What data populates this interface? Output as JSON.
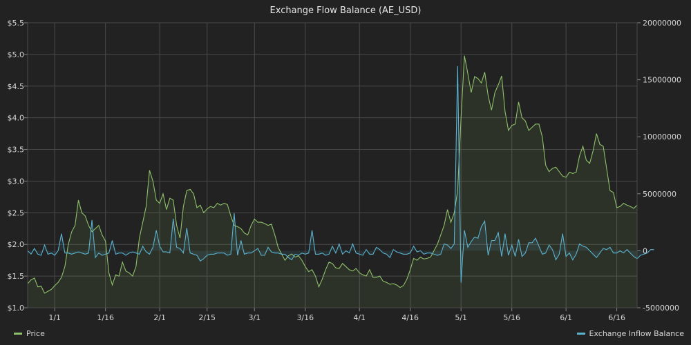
{
  "chart_data": {
    "type": "line",
    "title": "Exchange Flow Balance (AE_USD)",
    "x_ticks": [
      "1/1",
      "1/16",
      "2/1",
      "2/15",
      "3/1",
      "3/16",
      "4/1",
      "4/16",
      "5/1",
      "5/16",
      "6/1",
      "6/16"
    ],
    "y_left": {
      "min": 1.0,
      "max": 5.5,
      "ticks": [
        "$1.0",
        "$1.5",
        "$2.0",
        "$2.5",
        "$3.0",
        "$3.5",
        "$4.0",
        "$4.5",
        "$5.0",
        "$5.5"
      ]
    },
    "y_right": {
      "min": -5000000,
      "max": 20000000,
      "ticks": [
        "-5000000",
        "0",
        "5000000",
        "10000000",
        "15000000",
        "20000000"
      ]
    },
    "grid": true,
    "colors": {
      "price": "#8fc16a",
      "flow": "#5bb3d0",
      "background": "#222222",
      "grid": "#4a4a4a"
    },
    "series": [
      {
        "name": "Price",
        "axis": "left",
        "x_start": "2018-12-24",
        "values": [
          1.38,
          1.44,
          1.47,
          1.33,
          1.34,
          1.23,
          1.26,
          1.29,
          1.35,
          1.4,
          1.48,
          1.65,
          2.0,
          2.2,
          2.3,
          2.7,
          2.5,
          2.45,
          2.3,
          2.2,
          2.25,
          2.3,
          2.15,
          2.05,
          1.55,
          1.36,
          1.52,
          1.5,
          1.72,
          1.58,
          1.55,
          1.5,
          1.65,
          2.1,
          2.35,
          2.6,
          3.17,
          3.0,
          2.7,
          2.65,
          2.8,
          2.55,
          2.73,
          2.7,
          2.3,
          2.1,
          2.6,
          2.85,
          2.87,
          2.8,
          2.58,
          2.62,
          2.5,
          2.56,
          2.6,
          2.58,
          2.65,
          2.62,
          2.65,
          2.63,
          2.45,
          2.3,
          2.28,
          2.25,
          2.18,
          2.15,
          2.3,
          2.4,
          2.35,
          2.35,
          2.33,
          2.3,
          2.32,
          2.15,
          1.95,
          1.85,
          1.75,
          1.82,
          1.85,
          1.8,
          1.82,
          1.75,
          1.65,
          1.57,
          1.6,
          1.5,
          1.33,
          1.45,
          1.6,
          1.72,
          1.7,
          1.63,
          1.62,
          1.7,
          1.65,
          1.6,
          1.58,
          1.62,
          1.55,
          1.52,
          1.5,
          1.6,
          1.48,
          1.48,
          1.5,
          1.42,
          1.4,
          1.37,
          1.38,
          1.36,
          1.32,
          1.35,
          1.45,
          1.6,
          1.78,
          1.75,
          1.8,
          1.77,
          1.78,
          1.8,
          1.9,
          2.0,
          2.15,
          2.3,
          2.55,
          2.35,
          2.5,
          2.85,
          4.0,
          4.98,
          4.7,
          4.4,
          4.65,
          4.62,
          4.55,
          4.72,
          4.35,
          4.12,
          4.4,
          4.52,
          4.66,
          4.1,
          3.8,
          3.88,
          3.9,
          4.25,
          4.0,
          3.95,
          3.8,
          3.85,
          3.9,
          3.9,
          3.7,
          3.25,
          3.15,
          3.2,
          3.22,
          3.15,
          3.08,
          3.06,
          3.14,
          3.12,
          3.14,
          3.4,
          3.55,
          3.33,
          3.28,
          3.48,
          3.75,
          3.58,
          3.55,
          3.2,
          2.85,
          2.82,
          2.58,
          2.6,
          2.65,
          2.62,
          2.6,
          2.57,
          2.62
        ]
      },
      {
        "name": "Exchange Inflow Balance",
        "axis": "right",
        "x_start": "2018-12-24",
        "values": [
          0,
          -300000,
          200000,
          -300000,
          -400000,
          500000,
          -300000,
          -200000,
          -400000,
          0,
          1500000,
          -200000,
          -200000,
          -300000,
          -200000,
          -100000,
          -200000,
          -300000,
          -200000,
          2700000,
          -600000,
          -200000,
          -400000,
          -300000,
          -200000,
          900000,
          -300000,
          -200000,
          -200000,
          -400000,
          -200000,
          -100000,
          -200000,
          -300000,
          400000,
          -100000,
          -300000,
          300000,
          1800000,
          400000,
          -100000,
          -100000,
          -200000,
          2800000,
          300000,
          200000,
          -200000,
          2000000,
          -200000,
          -300000,
          -400000,
          -900000,
          -700000,
          -400000,
          -300000,
          -300000,
          -200000,
          -200000,
          -200000,
          -400000,
          -300000,
          3300000,
          -400000,
          900000,
          -300000,
          -200000,
          -200000,
          0,
          200000,
          -400000,
          -400000,
          300000,
          -100000,
          -200000,
          -200000,
          -300000,
          -300000,
          -600000,
          -800000,
          -300000,
          -400000,
          -200000,
          -300000,
          -200000,
          1800000,
          -300000,
          -300000,
          -200000,
          -400000,
          -300000,
          400000,
          -200000,
          600000,
          -300000,
          0,
          -200000,
          600000,
          -200000,
          -300000,
          -400000,
          100000,
          -300000,
          -300000,
          300000,
          100000,
          -200000,
          -300000,
          -600000,
          100000,
          -100000,
          -200000,
          -300000,
          -300000,
          -200000,
          400000,
          -100000,
          0,
          -300000,
          -200000,
          -200000,
          -300000,
          -400000,
          -300000,
          600000,
          500000,
          200000,
          600000,
          16200000,
          -2800000,
          1800000,
          300000,
          800000,
          1200000,
          1100000,
          2100000,
          2600000,
          -400000,
          900000,
          900000,
          1600000,
          -500000,
          1500000,
          -400000,
          500000,
          -500000,
          1000000,
          -500000,
          -200000,
          700000,
          700000,
          1100000,
          400000,
          -300000,
          -200000,
          500000,
          100000,
          -800000,
          -300000,
          1500000,
          -500000,
          -200000,
          -800000,
          -300000,
          600000,
          400000,
          300000,
          0,
          -300000,
          -600000,
          -200000,
          200000,
          100000,
          300000,
          -200000,
          -200000,
          0,
          -200000,
          100000,
          -200000,
          -500000,
          -700000,
          -400000,
          -300000,
          -200000,
          100000,
          100000
        ]
      }
    ]
  }
}
